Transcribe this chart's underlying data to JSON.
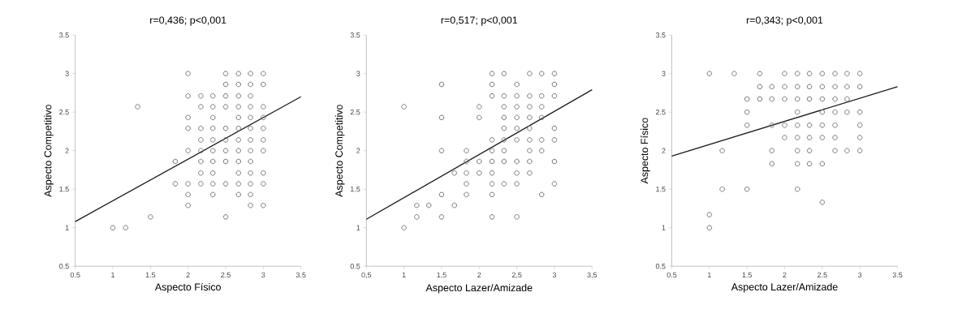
{
  "chart_data": [
    {
      "type": "scatter",
      "title": "r=0,436; p<0,001",
      "xlabel": "Aspecto Físico",
      "ylabel": "Aspecto Competitivo",
      "xlim": [
        0.5,
        3.5
      ],
      "ylim": [
        0.5,
        3.5
      ],
      "xticks": [
        0.5,
        1,
        1.5,
        2,
        2.5,
        3,
        3.5
      ],
      "yticks": [
        0.5,
        1,
        1.5,
        2,
        2.5,
        3,
        3.5
      ],
      "marker": "circle",
      "series": [
        {
          "color": "#7a7a7a",
          "x": [
            2,
            2.5,
            2.67,
            2.83,
            3,
            2.5,
            2.67,
            2.83,
            3,
            2,
            2.17,
            2.33,
            2.5,
            2.67,
            2.83,
            1.33,
            2.17,
            2.33,
            2.5,
            2.67,
            2.83,
            3,
            2,
            2.33,
            2.67,
            2.83,
            3,
            2,
            2.17,
            2.33,
            2.5,
            2.67,
            2.83,
            3,
            2.17,
            2.33,
            2.5,
            2.67,
            2.83,
            3,
            2,
            2.17,
            2.33,
            2.5,
            2.67,
            2.83,
            3,
            1.83,
            2.17,
            2.33,
            2.5,
            2.67,
            2.83,
            2.17,
            2.33,
            2.67,
            2.83,
            3,
            1.83,
            2,
            2.17,
            2.33,
            2.5,
            2.67,
            2.83,
            3,
            2,
            2.33,
            2.67,
            2.83,
            2,
            2.83,
            3,
            1.5,
            2.5,
            1,
            1.17
          ],
          "values": [
            3,
            3,
            3,
            3,
            3,
            2.86,
            2.86,
            2.86,
            2.86,
            2.71,
            2.71,
            2.71,
            2.71,
            2.71,
            2.71,
            2.57,
            2.57,
            2.57,
            2.57,
            2.57,
            2.57,
            2.57,
            2.43,
            2.43,
            2.43,
            2.43,
            2.43,
            2.29,
            2.29,
            2.29,
            2.29,
            2.29,
            2.29,
            2.29,
            2.14,
            2.14,
            2.14,
            2.14,
            2.14,
            2.14,
            2,
            2,
            2,
            2,
            2,
            2,
            2,
            1.86,
            1.86,
            1.86,
            1.86,
            1.86,
            1.86,
            1.71,
            1.71,
            1.71,
            1.71,
            1.71,
            1.57,
            1.57,
            1.57,
            1.57,
            1.57,
            1.57,
            1.57,
            1.57,
            1.43,
            1.43,
            1.43,
            1.43,
            1.29,
            1.29,
            1.29,
            1.14,
            1.14,
            1,
            1
          ]
        },
        {
          "type": "line",
          "color": "#1a1a1a",
          "marker": "none",
          "x": [
            0.5,
            3.5
          ],
          "values": [
            1.08,
            2.7
          ]
        }
      ]
    },
    {
      "type": "scatter",
      "title": "r=0,517; p<0,001",
      "xlabel": "Aspecto Lazer/Amizade",
      "ylabel": "Aspecto Competitivo",
      "xlim": [
        0.5,
        3.5
      ],
      "ylim": [
        0.5,
        3.5
      ],
      "xticks": [
        {
          "value": 0.5,
          "label": "0,5"
        },
        1,
        {
          "value": 1.5,
          "label": "1,5"
        },
        2,
        {
          "value": 2.5,
          "label": "2,5"
        },
        3,
        {
          "value": 3.5,
          "label": "3,5"
        }
      ],
      "yticks": [
        0.5,
        1,
        1.5,
        2,
        2.5,
        3,
        3.5
      ],
      "marker": "circle",
      "series": [
        {
          "color": "#7a7a7a",
          "x": [
            2.17,
            2.33,
            2.67,
            2.83,
            3,
            1.5,
            2.17,
            2.5,
            3,
            2.17,
            2.33,
            2.5,
            2.67,
            2.83,
            3,
            1,
            2,
            2.33,
            2.5,
            2.67,
            2.83,
            1.5,
            2,
            2.33,
            2.5,
            2.67,
            2.83,
            2.33,
            2.5,
            2.67,
            3,
            2.17,
            2.33,
            2.5,
            2.67,
            2.83,
            3,
            1.5,
            1.83,
            2.17,
            2.33,
            2.67,
            2.83,
            1.83,
            2,
            2.17,
            2.33,
            2.5,
            2.67,
            3,
            1.67,
            1.83,
            2,
            2.17,
            2.5,
            2.67,
            1.83,
            2.17,
            2.33,
            2.5,
            3,
            1.5,
            1.83,
            2.17,
            2.83,
            1.17,
            1.33,
            1.67,
            1.17,
            1.5,
            2.17,
            2.5,
            1
          ],
          "values": [
            3,
            3,
            3,
            3,
            3,
            2.86,
            2.86,
            2.86,
            2.86,
            2.71,
            2.71,
            2.71,
            2.71,
            2.71,
            2.71,
            2.57,
            2.57,
            2.57,
            2.57,
            2.57,
            2.57,
            2.43,
            2.43,
            2.43,
            2.43,
            2.43,
            2.43,
            2.29,
            2.29,
            2.29,
            2.29,
            2.14,
            2.14,
            2.14,
            2.14,
            2.14,
            2.14,
            2,
            2,
            2,
            2,
            2,
            2,
            1.86,
            1.86,
            1.86,
            1.86,
            1.86,
            1.86,
            1.86,
            1.71,
            1.71,
            1.71,
            1.71,
            1.71,
            1.71,
            1.57,
            1.57,
            1.57,
            1.57,
            1.57,
            1.43,
            1.43,
            1.43,
            1.43,
            1.29,
            1.29,
            1.29,
            1.14,
            1.14,
            1.14,
            1.14,
            1
          ]
        },
        {
          "type": "line",
          "color": "#1a1a1a",
          "marker": "none",
          "x": [
            0.5,
            3.5
          ],
          "values": [
            1.11,
            2.79
          ]
        }
      ]
    },
    {
      "type": "scatter",
      "title": "r=0,343; p<0,001",
      "xlabel": "Aspecto Lazer/Amizade",
      "ylabel": "Aspecto Físico",
      "xlim": [
        0.5,
        3.5
      ],
      "ylim": [
        0.5,
        3.5
      ],
      "xticks": [
        0.5,
        1,
        1.5,
        2,
        2.5,
        3,
        3.5
      ],
      "yticks": [
        0.5,
        1,
        1.5,
        2,
        2.5,
        3,
        3.5
      ],
      "marker": "circle",
      "series": [
        {
          "color": "#7a7a7a",
          "x": [
            1,
            1.33,
            1.67,
            2,
            2.17,
            2.33,
            2.5,
            2.67,
            2.83,
            3,
            1.67,
            1.83,
            2,
            2.17,
            2.33,
            2.5,
            2.67,
            2.83,
            3,
            1.5,
            1.67,
            1.83,
            2,
            2.17,
            2.33,
            2.5,
            2.67,
            2.83,
            1.5,
            2.17,
            2.5,
            2.67,
            2.83,
            3,
            1.5,
            1.83,
            2,
            2.17,
            2.33,
            2.5,
            2.67,
            3,
            2,
            2.17,
            2.33,
            2.5,
            2.67,
            3,
            1.17,
            1.83,
            2.17,
            2.33,
            2.67,
            2.83,
            3,
            1.83,
            2.17,
            2.33,
            2.5,
            1.17,
            1.5,
            2.17,
            2.5,
            1,
            1
          ],
          "values": [
            3,
            3,
            3,
            3,
            3,
            3,
            3,
            3,
            3,
            3,
            2.83,
            2.83,
            2.83,
            2.83,
            2.83,
            2.83,
            2.83,
            2.83,
            2.83,
            2.67,
            2.67,
            2.67,
            2.67,
            2.67,
            2.67,
            2.67,
            2.67,
            2.67,
            2.5,
            2.5,
            2.5,
            2.5,
            2.5,
            2.5,
            2.33,
            2.33,
            2.33,
            2.33,
            2.33,
            2.33,
            2.33,
            2.33,
            2.17,
            2.17,
            2.17,
            2.17,
            2.17,
            2.17,
            2,
            2,
            2,
            2,
            2,
            2,
            2,
            1.83,
            1.83,
            1.83,
            1.83,
            1.5,
            1.5,
            1.5,
            1.33,
            1.17,
            1
          ]
        },
        {
          "type": "line",
          "color": "#1a1a1a",
          "marker": "none",
          "x": [
            0.5,
            3.5
          ],
          "values": [
            1.93,
            2.83
          ]
        }
      ]
    }
  ]
}
